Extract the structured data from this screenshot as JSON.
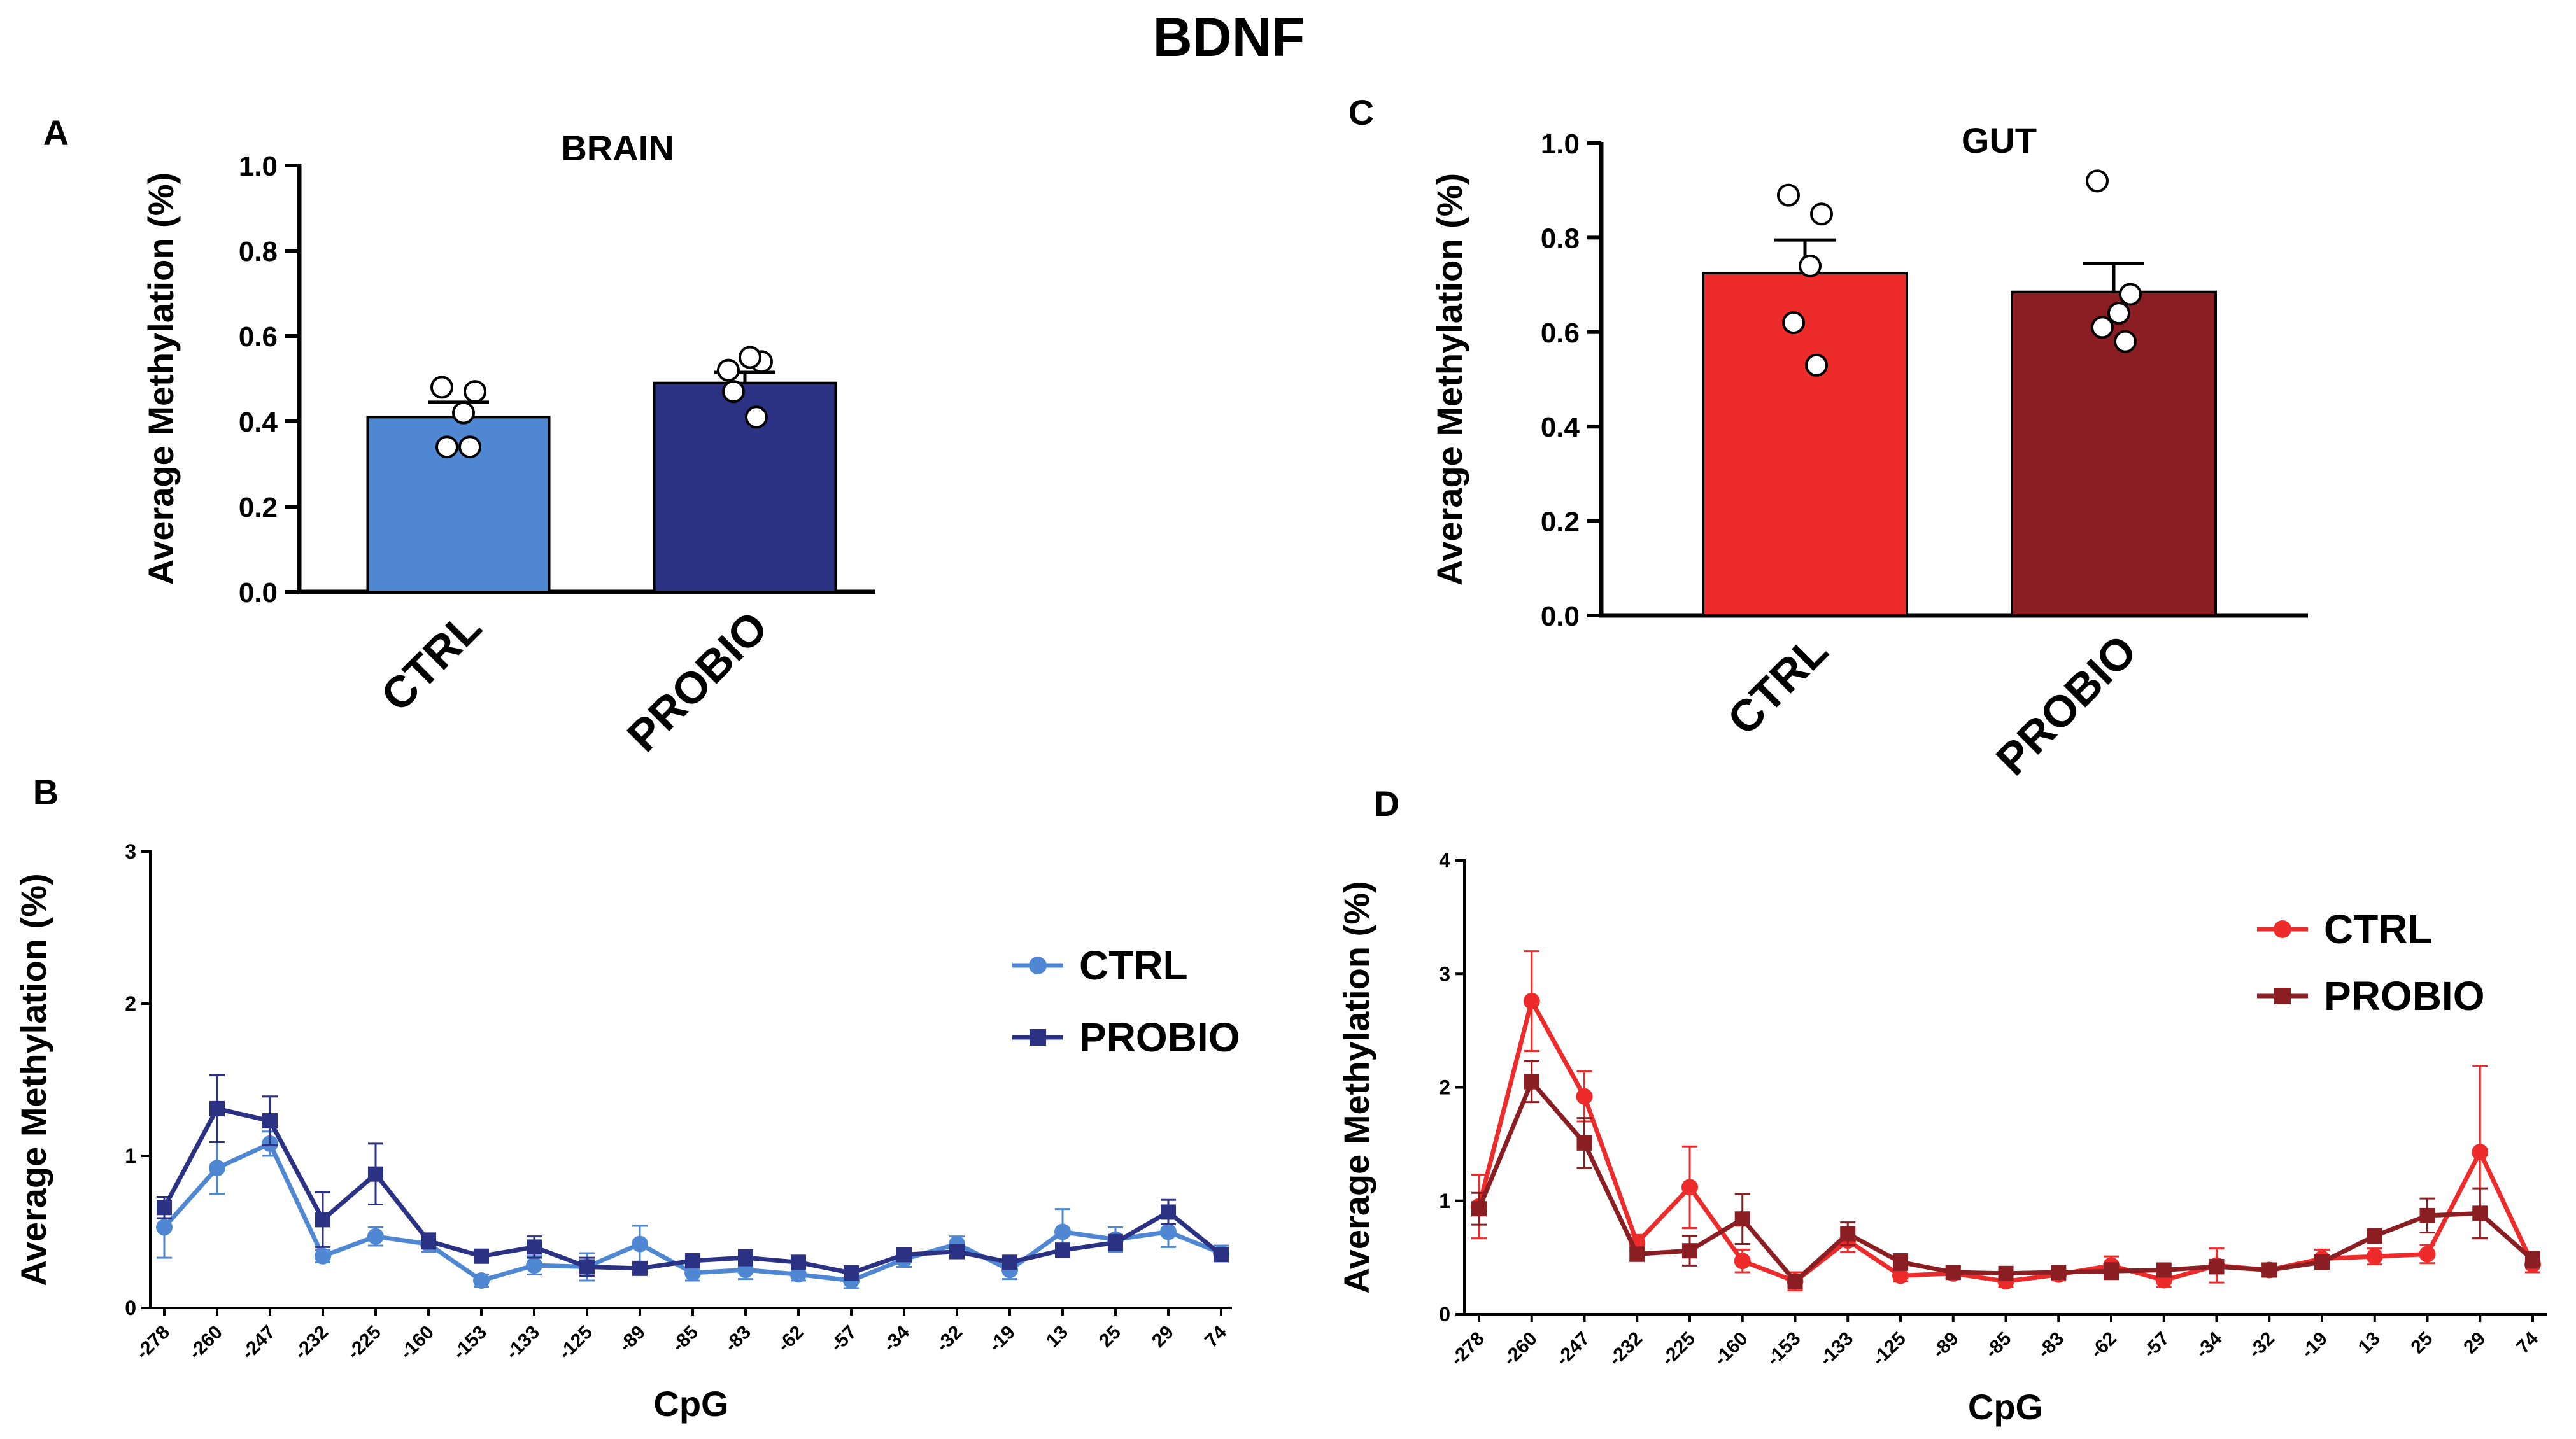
{
  "figure_title": "BDNF",
  "colors": {
    "brain_ctrl": "#4f87d2",
    "brain_probio": "#2b3183",
    "gut_ctrl": "#ee2b2b",
    "gut_probio": "#8b1e22",
    "axis": "#000000"
  },
  "chart_data": [
    {
      "panel": "A",
      "type": "bar",
      "title": "BRAIN",
      "ylabel": "Average Methylation (%)",
      "xlabel": "",
      "categories": [
        "CTRL",
        "PROBIO"
      ],
      "values": [
        0.41,
        0.49
      ],
      "sem": [
        0.035,
        0.025
      ],
      "ylim": [
        0,
        1.0
      ],
      "yticks": [
        "0.0",
        "0.2",
        "0.4",
        "0.6",
        "0.8",
        "1.0"
      ],
      "points": [
        [
          0.48,
          0.47,
          0.42,
          0.34,
          0.34
        ],
        [
          0.52,
          0.54,
          0.55,
          0.47,
          0.41
        ]
      ]
    },
    {
      "panel": "B",
      "type": "line",
      "title": "",
      "ylabel": "Average Methylation (%)",
      "xlabel": "CpG",
      "categories": [
        "-278",
        "-260",
        "-247",
        "-232",
        "-225",
        "-160",
        "-153",
        "-133",
        "-125",
        "-89",
        "-85",
        "-83",
        "-62",
        "-57",
        "-34",
        "-32",
        "-19",
        "13",
        "25",
        "29",
        "74"
      ],
      "ylim": [
        0,
        3
      ],
      "yticks": [
        "0",
        "1",
        "2",
        "3"
      ],
      "legend": "right",
      "series": [
        {
          "name": "CTRL",
          "marker": "circle",
          "values": [
            0.53,
            0.92,
            1.08,
            0.34,
            0.47,
            0.42,
            0.18,
            0.28,
            0.27,
            0.42,
            0.23,
            0.25,
            0.22,
            0.18,
            0.32,
            0.42,
            0.25,
            0.5,
            0.45,
            0.5,
            0.36
          ],
          "err": [
            0.2,
            0.17,
            0.08,
            0.04,
            0.06,
            0.05,
            0.04,
            0.06,
            0.09,
            0.12,
            0.05,
            0.06,
            0.04,
            0.05,
            0.05,
            0.05,
            0.06,
            0.15,
            0.08,
            0.1,
            0.05
          ]
        },
        {
          "name": "PROBIO",
          "marker": "square",
          "values": [
            0.66,
            1.31,
            1.23,
            0.58,
            0.88,
            0.44,
            0.34,
            0.4,
            0.27,
            0.26,
            0.31,
            0.33,
            0.3,
            0.23,
            0.35,
            0.37,
            0.3,
            0.38,
            0.43,
            0.63,
            0.35
          ],
          "err": [
            0.07,
            0.22,
            0.16,
            0.18,
            0.2,
            0.05,
            0.03,
            0.07,
            0.06,
            0.04,
            0.04,
            0.05,
            0.04,
            0.03,
            0.04,
            0.04,
            0.04,
            0.04,
            0.05,
            0.08,
            0.04
          ]
        }
      ]
    },
    {
      "panel": "C",
      "type": "bar",
      "title": "GUT",
      "ylabel": "Average Methylation (%)",
      "xlabel": "",
      "categories": [
        "CTRL",
        "PROBIO"
      ],
      "values": [
        0.725,
        0.685
      ],
      "sem": [
        0.07,
        0.06
      ],
      "ylim": [
        0,
        1.0
      ],
      "yticks": [
        "0.0",
        "0.2",
        "0.4",
        "0.6",
        "0.8",
        "1.0"
      ],
      "points": [
        [
          0.89,
          0.85,
          0.74,
          0.62,
          0.53
        ],
        [
          0.92,
          0.68,
          0.64,
          0.61,
          0.58
        ]
      ]
    },
    {
      "panel": "D",
      "type": "line",
      "title": "",
      "ylabel": "Average Methylation (%)",
      "xlabel": "CpG",
      "categories": [
        "-278",
        "-260",
        "-247",
        "-232",
        "-225",
        "-160",
        "-153",
        "-133",
        "-125",
        "-89",
        "-85",
        "-83",
        "-62",
        "-57",
        "-34",
        "-32",
        "-19",
        "13",
        "25",
        "29",
        "74"
      ],
      "ylim": [
        0,
        4
      ],
      "yticks": [
        "0",
        "1",
        "2",
        "3",
        "4"
      ],
      "legend": "top-right",
      "series": [
        {
          "name": "CTRL",
          "marker": "circle",
          "values": [
            0.95,
            2.76,
            1.92,
            0.63,
            1.12,
            0.47,
            0.29,
            0.65,
            0.34,
            0.36,
            0.29,
            0.35,
            0.43,
            0.3,
            0.43,
            0.39,
            0.49,
            0.51,
            0.53,
            1.43,
            0.44
          ],
          "err": [
            0.28,
            0.44,
            0.22,
            0.07,
            0.36,
            0.1,
            0.08,
            0.1,
            0.05,
            0.05,
            0.05,
            0.05,
            0.08,
            0.06,
            0.15,
            0.05,
            0.08,
            0.07,
            0.08,
            0.76,
            0.07
          ]
        },
        {
          "name": "PROBIO",
          "marker": "square",
          "values": [
            0.93,
            2.05,
            1.51,
            0.53,
            0.56,
            0.84,
            0.29,
            0.71,
            0.46,
            0.37,
            0.36,
            0.37,
            0.38,
            0.39,
            0.42,
            0.39,
            0.46,
            0.69,
            0.87,
            0.89,
            0.48
          ],
          "err": [
            0.14,
            0.18,
            0.22,
            0.06,
            0.13,
            0.22,
            0.05,
            0.1,
            0.07,
            0.05,
            0.05,
            0.05,
            0.07,
            0.05,
            0.06,
            0.05,
            0.06,
            0.06,
            0.15,
            0.22,
            0.07
          ]
        }
      ]
    }
  ],
  "panel_labels": [
    "A",
    "B",
    "C",
    "D"
  ]
}
